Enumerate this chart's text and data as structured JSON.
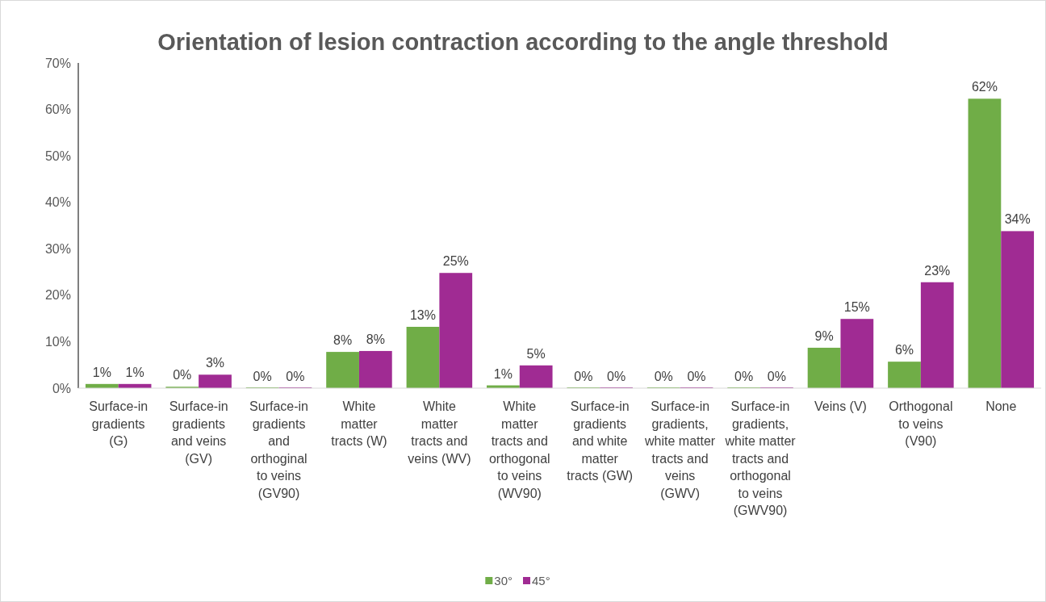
{
  "chart_data": {
    "type": "bar",
    "title": "Orientation of lesion contraction according to the angle threshold",
    "categories": [
      "Surface-in gradients (G)",
      "Surface-in gradients and veins (GV)",
      "Surface-in gradients and orthoginal to veins (GV90)",
      "White matter tracts (W)",
      "White matter tracts and veins (WV)",
      "White matter tracts and orthogonal to veins (WV90)",
      "Surface-in gradients and white matter tracts (GW)",
      "Surface-in gradients, white matter tracts and veins (GWV)",
      "Surface-in gradients, white matter tracts and orthogonal to veins (GWV90)",
      "Veins (V)",
      "Orthogonal to veins (V90)",
      "None"
    ],
    "series": [
      {
        "name": "30°",
        "color": "#70ad47",
        "values": [
          0.9,
          0.3,
          0,
          7.8,
          13.2,
          0.6,
          0,
          0,
          0,
          8.7,
          5.7,
          62.3
        ],
        "value_labels": [
          "1%",
          "0%",
          "0%",
          "8%",
          "13%",
          "1%",
          "0%",
          "0%",
          "0%",
          "9%",
          "6%",
          "62%"
        ]
      },
      {
        "name": "45°",
        "color": "#a02b93",
        "values": [
          0.9,
          2.9,
          0,
          8,
          24.8,
          4.9,
          0,
          0,
          0,
          14.9,
          22.8,
          33.8
        ],
        "value_labels": [
          "1%",
          "3%",
          "0%",
          "8%",
          "25%",
          "5%",
          "0%",
          "0%",
          "0%",
          "15%",
          "23%",
          "34%"
        ]
      }
    ],
    "ylim": [
      0,
      70
    ],
    "yticks": [
      {
        "value": 0,
        "label": "0%"
      },
      {
        "value": 10,
        "label": "10%"
      },
      {
        "value": 20,
        "label": "20%"
      },
      {
        "value": 30,
        "label": "30%"
      },
      {
        "value": 40,
        "label": "40%"
      },
      {
        "value": 50,
        "label": "50%"
      },
      {
        "value": 60,
        "label": "60%"
      },
      {
        "value": 70,
        "label": "70%"
      }
    ],
    "legend": "bottom"
  }
}
